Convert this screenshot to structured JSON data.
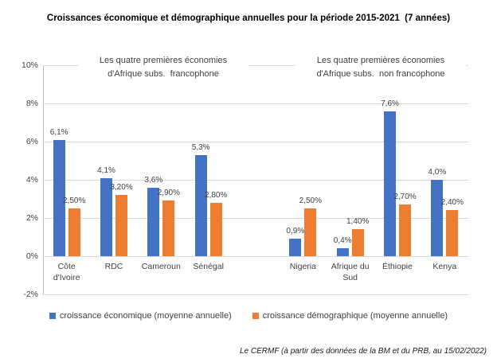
{
  "title": "Croissances économique et démographique annuelles pour la période 2015-2021  (7 années)",
  "annotations": {
    "left": "Les quatre premières économies\nd'Afrique subs.  francophone",
    "right": "Les quatre premières économies\nd'Afrique subs.  non francophone"
  },
  "source_note": "Le CERMF (à partir des données de la BM et du PRB, au 15/02/2022)",
  "colors": {
    "economic_blue": "#4472C4",
    "demographic_orange": "#ED7D31",
    "gridline": "#D9D9D9",
    "axis_line": "#BFBFBF",
    "label_text": "#404040"
  },
  "chart_data": {
    "type": "bar",
    "title": "Croissances économique et démographique annuelles pour la période 2015-2021  (7 années)",
    "categories": [
      "Côte\nd'Ivoire",
      "RDC",
      "Cameroun",
      "Sénégal",
      "",
      "Nigeria",
      "Afrique du\nSud",
      "Éthiopie",
      "Kenya"
    ],
    "groups": [
      {
        "label": "Les quatre premières économies d'Afrique subs. francophone",
        "categories": [
          "Côte d'Ivoire",
          "RDC",
          "Cameroun",
          "Sénégal"
        ]
      },
      {
        "label": "Les quatre premières économies d'Afrique subs. non francophone",
        "categories": [
          "Nigeria",
          "Afrique du Sud",
          "Éthiopie",
          "Kenya"
        ]
      }
    ],
    "series": [
      {
        "name": "croissance économique (moyenne annuelle)",
        "color": "#4472C4",
        "values": [
          6.1,
          4.1,
          3.6,
          5.3,
          null,
          0.9,
          0.4,
          7.6,
          4.0
        ],
        "labels": [
          "6,1%",
          "4,1%",
          "3,6%",
          "5,3%",
          "",
          "0,9%",
          "0,4%",
          "7,6%",
          "4,0%"
        ]
      },
      {
        "name": "croissance démographique (moyenne annuelle)",
        "color": "#ED7D31",
        "values": [
          2.5,
          3.2,
          2.9,
          2.8,
          null,
          2.5,
          1.4,
          2.7,
          2.4
        ],
        "labels": [
          "2,50%",
          "3,20%",
          "2,90%",
          "2,80%",
          "",
          "2,50%",
          "1,40%",
          "2,70%",
          "2,40%"
        ]
      }
    ],
    "y_axis": {
      "min": -2,
      "max": 10,
      "step": 2,
      "tick_labels": [
        "10%",
        "8%",
        "6%",
        "4%",
        "2%",
        "0%",
        "-2%"
      ]
    },
    "grid": true,
    "legend_position": "bottom",
    "unit": "%"
  }
}
